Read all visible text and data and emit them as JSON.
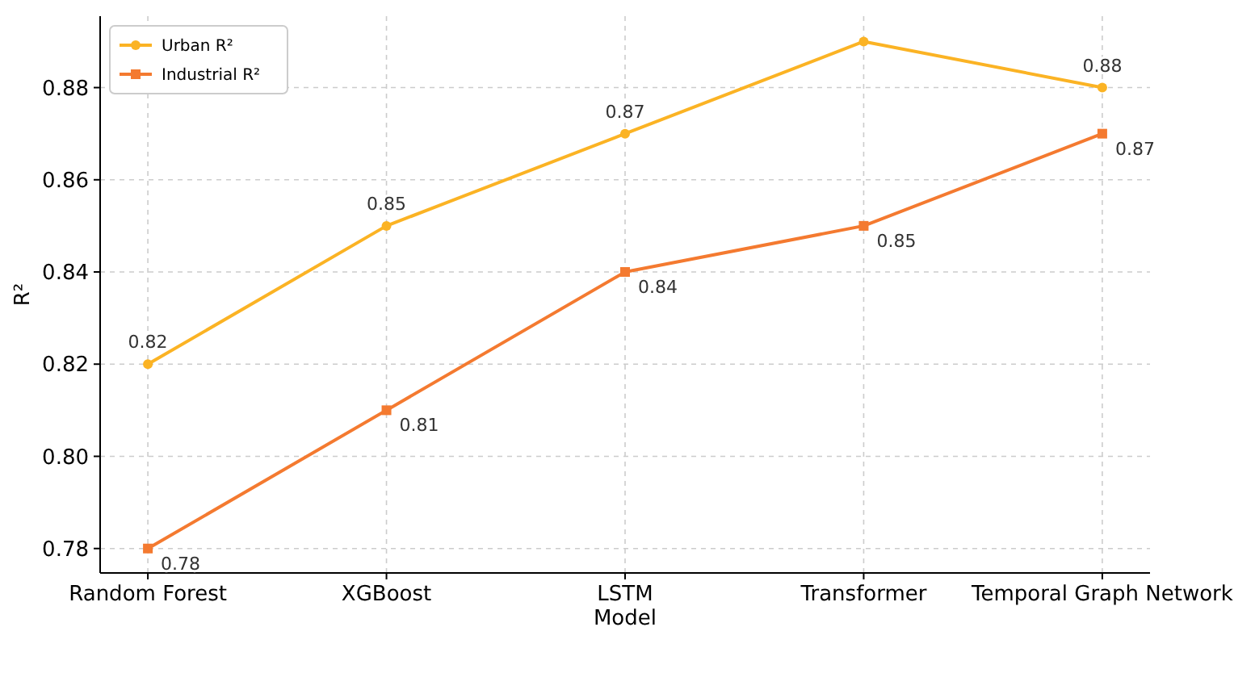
{
  "chart_data": {
    "type": "line",
    "xlabel": "Model",
    "ylabel": "R²",
    "categories": [
      "Random Forest",
      "XGBoost",
      "LSTM",
      "Transformer",
      "Temporal Graph Network"
    ],
    "series": [
      {
        "name": "Urban R²",
        "color": "#fbb324",
        "marker": "circle",
        "values": [
          0.82,
          0.85,
          0.87,
          0.89,
          0.88
        ],
        "value_labels": [
          "0.82",
          "0.85",
          "0.87",
          null,
          "0.88"
        ]
      },
      {
        "name": "Industrial R²",
        "color": "#f47a30",
        "marker": "square",
        "values": [
          0.78,
          0.81,
          0.84,
          0.85,
          0.87
        ],
        "value_labels": [
          "0.78",
          "0.81",
          "0.84",
          "0.85",
          "0.87"
        ]
      }
    ],
    "ylim": [
      0.7747,
      0.8955
    ],
    "yticks": [
      0.78,
      {
        "value": 0.8,
        "label": "0.80"
      },
      0.82,
      0.84,
      0.86,
      0.88
    ],
    "grid": true,
    "legend": "top left"
  }
}
